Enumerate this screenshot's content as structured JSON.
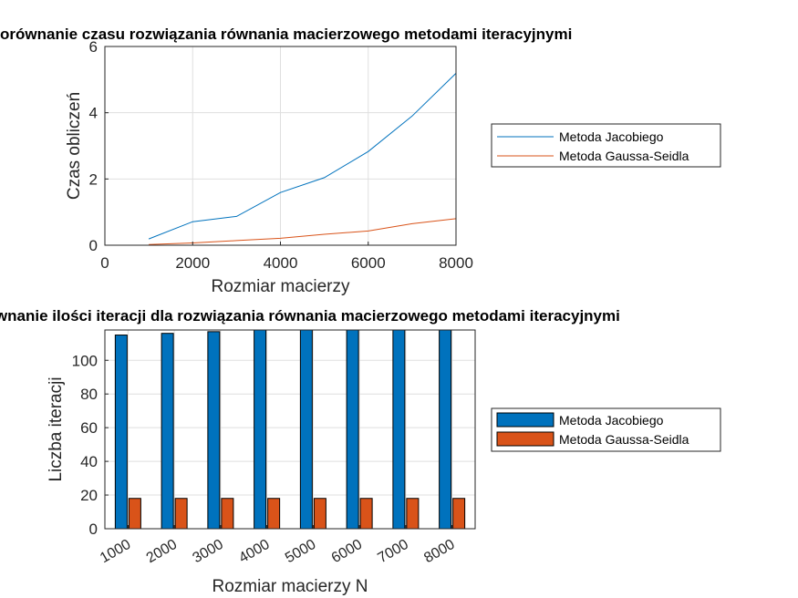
{
  "chart_data": [
    {
      "type": "line",
      "title": "Porównanie czasu rozwiązania równania macierzowego metodami iteracyjnymi",
      "xlabel": "Rozmiar macierzy",
      "ylabel": "Czas obliczeń",
      "xlim": [
        0,
        8000
      ],
      "ylim": [
        0,
        6
      ],
      "xticks": [
        0,
        2000,
        4000,
        6000,
        8000
      ],
      "yticks": [
        0,
        2,
        4,
        6
      ],
      "grid": true,
      "legend_position": "outside-right",
      "x": [
        1000,
        2000,
        3000,
        4000,
        5000,
        6000,
        7000,
        8000
      ],
      "series": [
        {
          "name": "Metoda Jacobiego",
          "color": "#0072BD",
          "values": [
            0.19,
            0.71,
            0.87,
            1.59,
            2.04,
            2.83,
            3.9,
            5.19
          ]
        },
        {
          "name": "Metoda Gaussa-Seidla",
          "color": "#D95319",
          "values": [
            0.02,
            0.07,
            0.14,
            0.21,
            0.33,
            0.43,
            0.65,
            0.8
          ]
        }
      ]
    },
    {
      "type": "bar",
      "title": "Porównanie ilości iteracji dla rozwiązania równania macierzowego metodami iteracyjnymi",
      "xlabel": "Rozmiar macierzy N",
      "ylabel": "Liczba iteracji",
      "ylim": [
        0,
        118
      ],
      "yticks": [
        0,
        20,
        40,
        60,
        80,
        100
      ],
      "grid": true,
      "legend_position": "outside-right",
      "categories": [
        "1000",
        "2000",
        "3000",
        "4000",
        "5000",
        "6000",
        "7000",
        "8000"
      ],
      "series": [
        {
          "name": "Metoda Jacobiego",
          "color": "#0072BD",
          "values": [
            115,
            116,
            117,
            118,
            118,
            118,
            118,
            118
          ]
        },
        {
          "name": "Metoda Gaussa-Seidla",
          "color": "#D95319",
          "values": [
            18,
            18,
            18,
            18,
            18,
            18,
            18,
            18
          ]
        }
      ]
    }
  ]
}
